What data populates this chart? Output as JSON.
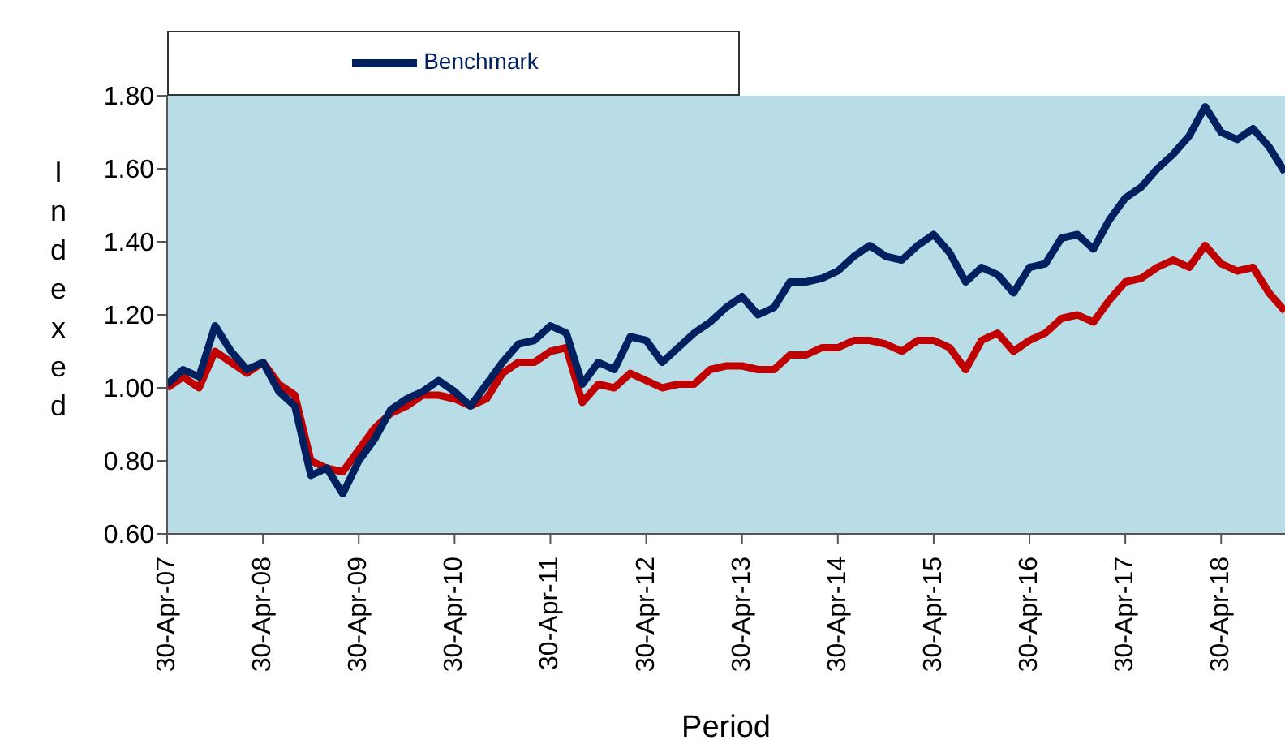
{
  "chart_data": {
    "type": "line",
    "xlabel": "Period",
    "ylabel": "Indexed",
    "categories": [
      "30-Apr-07",
      null,
      null,
      null,
      null,
      null,
      "30-Apr-08",
      null,
      null,
      null,
      null,
      null,
      "30-Apr-09",
      null,
      null,
      null,
      null,
      null,
      "30-Apr-10",
      null,
      null,
      null,
      null,
      null,
      "30-Apr-11",
      null,
      null,
      null,
      null,
      null,
      "30-Apr-12",
      null,
      null,
      null,
      null,
      null,
      "30-Apr-13",
      null,
      null,
      null,
      null,
      null,
      "30-Apr-14",
      null,
      null,
      null,
      null,
      null,
      "30-Apr-15",
      null,
      null,
      null,
      null,
      null,
      "30-Apr-16",
      null,
      null,
      null,
      null,
      null,
      "30-Apr-17",
      null,
      null,
      null,
      null,
      null,
      "30-Apr-18",
      null,
      null,
      null,
      null
    ],
    "series": [
      {
        "color": "#c00000",
        "values": [
          1.0,
          1.03,
          1.0,
          1.1,
          1.07,
          1.04,
          1.07,
          1.01,
          0.98,
          0.8,
          0.78,
          0.77,
          0.83,
          0.89,
          0.93,
          0.95,
          0.98,
          0.98,
          0.97,
          0.95,
          0.97,
          1.04,
          1.07,
          1.07,
          1.1,
          1.11,
          0.96,
          1.01,
          1.0,
          1.04,
          1.02,
          1.0,
          1.01,
          1.01,
          1.05,
          1.06,
          1.06,
          1.05,
          1.05,
          1.09,
          1.09,
          1.11,
          1.11,
          1.13,
          1.13,
          1.12,
          1.1,
          1.13,
          1.13,
          1.11,
          1.05,
          1.13,
          1.15,
          1.1,
          1.13,
          1.15,
          1.19,
          1.2,
          1.18,
          1.24,
          1.29,
          1.3,
          1.33,
          1.35,
          1.33,
          1.39,
          1.34,
          1.32,
          1.33,
          1.26,
          1.21
        ]
      },
      {
        "name": "Benchmark",
        "color": "#002060",
        "values": [
          1.01,
          1.05,
          1.03,
          1.17,
          1.1,
          1.05,
          1.07,
          0.99,
          0.95,
          0.76,
          0.78,
          0.71,
          0.8,
          0.86,
          0.94,
          0.97,
          0.99,
          1.02,
          0.99,
          0.95,
          1.01,
          1.07,
          1.12,
          1.13,
          1.17,
          1.15,
          1.01,
          1.07,
          1.05,
          1.14,
          1.13,
          1.07,
          1.11,
          1.15,
          1.18,
          1.22,
          1.25,
          1.2,
          1.22,
          1.29,
          1.29,
          1.3,
          1.32,
          1.36,
          1.39,
          1.36,
          1.35,
          1.39,
          1.42,
          1.37,
          1.29,
          1.33,
          1.31,
          1.26,
          1.33,
          1.34,
          1.41,
          1.42,
          1.38,
          1.46,
          1.52,
          1.55,
          1.6,
          1.64,
          1.69,
          1.77,
          1.7,
          1.68,
          1.71,
          1.66,
          1.59
        ]
      }
    ],
    "ylim": [
      0.6,
      1.8
    ],
    "yticks": [
      {
        "value": 0.6,
        "label": "0.60"
      },
      {
        "value": 0.8,
        "label": "0.80"
      },
      {
        "value": 1.0,
        "label": "1.00"
      },
      {
        "value": 1.2,
        "label": "1.20"
      },
      {
        "value": 1.4,
        "label": "1.40"
      },
      {
        "value": 1.6,
        "label": "1.60"
      },
      {
        "value": 1.8,
        "label": "1.80"
      }
    ],
    "legend": "top left",
    "line_style": "solid"
  }
}
